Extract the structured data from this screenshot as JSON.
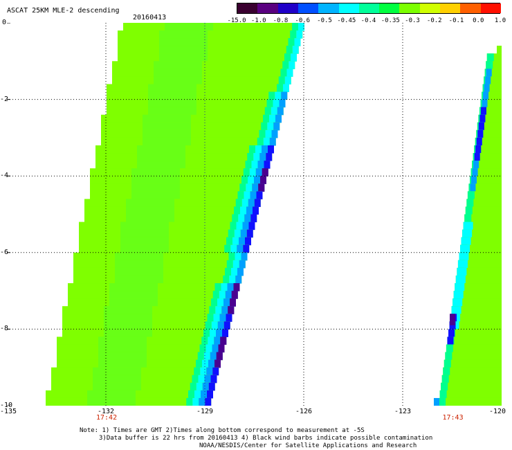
{
  "header": {
    "title": "ASCAT 25KM MLE-2 descending",
    "date": "20160413"
  },
  "colorbar": {
    "colors": [
      "#3a0030",
      "#5a0080",
      "#2000c8",
      "#0050ff",
      "#00b4ff",
      "#00ffff",
      "#00ff9a",
      "#00ff40",
      "#7cff00",
      "#d0ff00",
      "#ffd000",
      "#ff6000",
      "#ff1000"
    ],
    "labels": [
      "-15.0",
      "-1.0",
      "-0.8",
      "-0.6",
      "-0.5",
      "-0.45",
      "-0.4",
      "-0.35",
      "-0.3",
      "-0.2",
      "-0.1",
      "0.0",
      "1.0"
    ]
  },
  "map": {
    "lon_ticks": [
      "-135",
      "-132",
      "-129",
      "-126",
      "-123",
      "-120"
    ],
    "lat_ticks": [
      "0",
      "-2",
      "-4",
      "-6",
      "-8",
      "-10"
    ],
    "lon_range": [
      -135,
      -120
    ],
    "lat_range": [
      0,
      -10
    ],
    "pass_times": [
      {
        "time": "17:42",
        "lon": -132
      },
      {
        "time": "17:43",
        "lon": -121.5
      }
    ],
    "swath_colors": {
      "bg": "#7fff00",
      "mid": "#55ff28",
      "edge1": "#00ff90",
      "edge2": "#00ffff",
      "edge3": "#00a0ff",
      "edge4": "#1010ff",
      "edge5": "#4a0090"
    }
  },
  "notes": {
    "line1": "Note: 1) Times are GMT 2)Times along bottom correspond to measurement at -5S",
    "line2": "3)Data buffer is 22 hrs from 20160413 4) Black wind barbs indicate possible contamination",
    "line3": "NOAA/NESDIS/Center for Satellite Applications and Research"
  }
}
